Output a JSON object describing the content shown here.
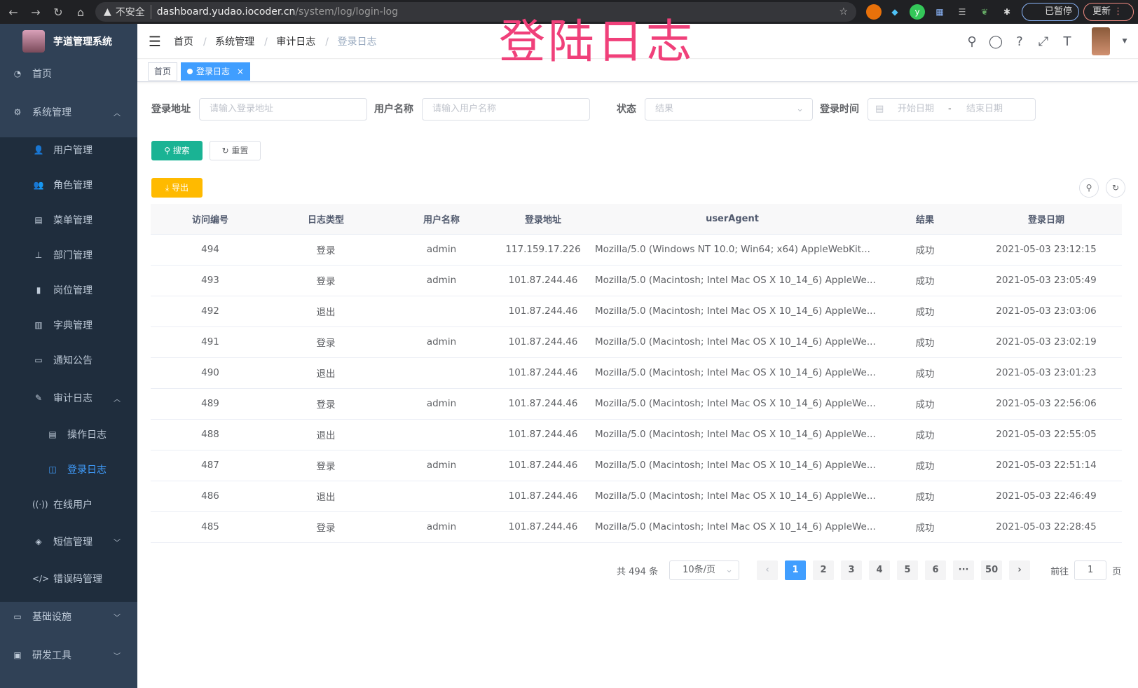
{
  "browser": {
    "insecure_label": "不安全",
    "url_host": "dashboard.yudao.iocoder.cn",
    "url_path": "/system/log/login-log",
    "profile_label": "已暂停",
    "update_label": "更新"
  },
  "overlay_title": "登陆日志",
  "sidebar": {
    "app_title": "芋道管理系统",
    "items": [
      {
        "label": "首页",
        "icon": "dashboard-icon"
      },
      {
        "label": "系统管理",
        "icon": "gear-icon",
        "expanded": true
      },
      {
        "label": "用户管理",
        "icon": "user-icon"
      },
      {
        "label": "角色管理",
        "icon": "peoples-icon"
      },
      {
        "label": "菜单管理",
        "icon": "tree-table-icon"
      },
      {
        "label": "部门管理",
        "icon": "tree-icon"
      },
      {
        "label": "岗位管理",
        "icon": "post-icon"
      },
      {
        "label": "字典管理",
        "icon": "dict-icon"
      },
      {
        "label": "通知公告",
        "icon": "message-icon"
      },
      {
        "label": "审计日志",
        "icon": "log-icon",
        "expanded": true
      },
      {
        "label": "操作日志",
        "icon": "form-icon"
      },
      {
        "label": "登录日志",
        "icon": "logininfor-icon",
        "active": true
      },
      {
        "label": "在线用户",
        "icon": "online-icon"
      },
      {
        "label": "短信管理",
        "icon": "validcode-icon",
        "expanded": false
      },
      {
        "label": "错误码管理",
        "icon": "code-icon"
      },
      {
        "label": "基础设施",
        "icon": "monitor-icon",
        "expanded": false
      },
      {
        "label": "研发工具",
        "icon": "tool-icon",
        "expanded": false
      }
    ]
  },
  "breadcrumb": [
    "首页",
    "系统管理",
    "审计日志",
    "登录日志"
  ],
  "tags": [
    {
      "label": "首页"
    },
    {
      "label": "登录日志",
      "active": true
    }
  ],
  "filters": {
    "addr_label": "登录地址",
    "addr_placeholder": "请输入登录地址",
    "user_label": "用户名称",
    "user_placeholder": "请输入用户名称",
    "status_label": "状态",
    "status_placeholder": "结果",
    "time_label": "登录时间",
    "start_placeholder": "开始日期",
    "sep": "-",
    "end_placeholder": "结束日期"
  },
  "actions": {
    "search": "搜索",
    "reset": "重置",
    "export": "导出"
  },
  "colors": {
    "primary": "#409eff",
    "search": "#1ab394",
    "export": "#ffba00",
    "sidebar": "#304156"
  },
  "table": {
    "headers": [
      "访问编号",
      "日志类型",
      "用户名称",
      "登录地址",
      "userAgent",
      "结果",
      "登录日期"
    ],
    "rows": [
      [
        "494",
        "登录",
        "admin",
        "117.159.17.226",
        "Mozilla/5.0 (Windows NT 10.0; Win64; x64) AppleWebKit...",
        "成功",
        "2021-05-03 23:12:15"
      ],
      [
        "493",
        "登录",
        "admin",
        "101.87.244.46",
        "Mozilla/5.0 (Macintosh; Intel Mac OS X 10_14_6) AppleWe...",
        "成功",
        "2021-05-03 23:05:49"
      ],
      [
        "492",
        "退出",
        "",
        "101.87.244.46",
        "Mozilla/5.0 (Macintosh; Intel Mac OS X 10_14_6) AppleWe...",
        "成功",
        "2021-05-03 23:03:06"
      ],
      [
        "491",
        "登录",
        "admin",
        "101.87.244.46",
        "Mozilla/5.0 (Macintosh; Intel Mac OS X 10_14_6) AppleWe...",
        "成功",
        "2021-05-03 23:02:19"
      ],
      [
        "490",
        "退出",
        "",
        "101.87.244.46",
        "Mozilla/5.0 (Macintosh; Intel Mac OS X 10_14_6) AppleWe...",
        "成功",
        "2021-05-03 23:01:23"
      ],
      [
        "489",
        "登录",
        "admin",
        "101.87.244.46",
        "Mozilla/5.0 (Macintosh; Intel Mac OS X 10_14_6) AppleWe...",
        "成功",
        "2021-05-03 22:56:06"
      ],
      [
        "488",
        "退出",
        "",
        "101.87.244.46",
        "Mozilla/5.0 (Macintosh; Intel Mac OS X 10_14_6) AppleWe...",
        "成功",
        "2021-05-03 22:55:05"
      ],
      [
        "487",
        "登录",
        "admin",
        "101.87.244.46",
        "Mozilla/5.0 (Macintosh; Intel Mac OS X 10_14_6) AppleWe...",
        "成功",
        "2021-05-03 22:51:14"
      ],
      [
        "486",
        "退出",
        "",
        "101.87.244.46",
        "Mozilla/5.0 (Macintosh; Intel Mac OS X 10_14_6) AppleWe...",
        "成功",
        "2021-05-03 22:46:49"
      ],
      [
        "485",
        "登录",
        "admin",
        "101.87.244.46",
        "Mozilla/5.0 (Macintosh; Intel Mac OS X 10_14_6) AppleWe...",
        "成功",
        "2021-05-03 22:28:45"
      ]
    ]
  },
  "pagination": {
    "total": "共 494 条",
    "page_size": "10条/页",
    "pages": [
      "1",
      "2",
      "3",
      "4",
      "5",
      "6",
      "···",
      "50"
    ],
    "current": "1",
    "goto_label": "前往",
    "goto_value": "1",
    "goto_suffix": "页"
  }
}
